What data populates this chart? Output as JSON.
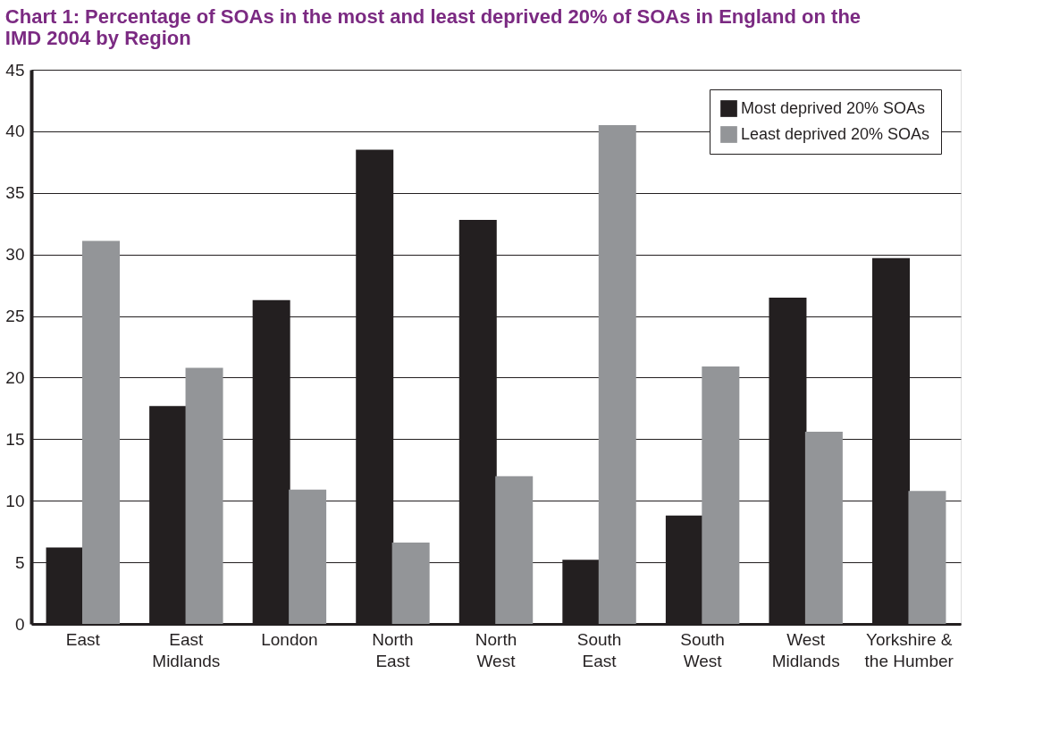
{
  "chart_data": {
    "type": "bar",
    "title": "Chart 1: Percentage of SOAs in the most and least deprived 20% of SOAs in England on the IMD 2004 by Region",
    "categories": [
      "East",
      "East Midlands",
      "London",
      "North East",
      "North West",
      "South East",
      "South West",
      "West Midlands",
      "Yorkshire & the Humber"
    ],
    "series": [
      {
        "name": "Most deprived 20% SOAs",
        "color": "#231f20",
        "values": [
          6.2,
          17.7,
          26.3,
          38.5,
          32.8,
          5.2,
          8.8,
          26.5,
          29.7
        ]
      },
      {
        "name": "Least deprived 20% SOAs",
        "color": "#939598",
        "values": [
          31.1,
          20.8,
          10.9,
          6.6,
          12.0,
          40.5,
          20.9,
          15.6,
          10.8
        ]
      }
    ],
    "ylim": [
      0,
      45
    ],
    "yticks": [
      0,
      5,
      10,
      15,
      20,
      25,
      30,
      35,
      40,
      45
    ],
    "grid": "y",
    "legend": "top right"
  }
}
